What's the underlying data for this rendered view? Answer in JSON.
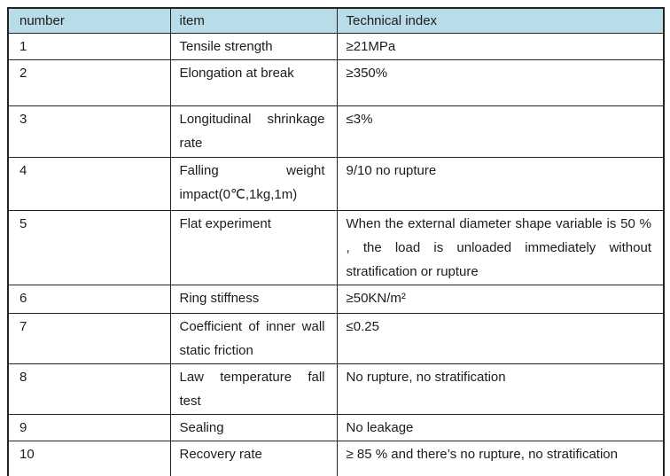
{
  "table": {
    "headers": [
      "number",
      "item",
      "Technical index"
    ],
    "rows": [
      {
        "number": "1",
        "item": "Tensile strength",
        "index": "≥21MPa"
      },
      {
        "number": "2",
        "item": "Elongation at break",
        "index": "≥350%"
      },
      {
        "number": "3",
        "item": "Longitudinal shrinkage rate",
        "index": "≤3%"
      },
      {
        "number": "4",
        "item": "Falling weight impact(0℃,1kg,1m)",
        "index": "9/10 no rupture"
      },
      {
        "number": "5",
        "item": "Flat experiment",
        "index": "When the external diameter shape variable is 50 % , the load is unloaded immediately without stratification or rupture"
      },
      {
        "number": "6",
        "item": "Ring stiffness",
        "index": "≥50KN/m²"
      },
      {
        "number": "7",
        "item": "Coefficient of inner wall static friction",
        "index": "≤0.25"
      },
      {
        "number": "8",
        "item": "Law temperature fall test",
        "index": "No rupture, no stratification"
      },
      {
        "number": "9",
        "item": "Sealing",
        "index": "No leakage"
      },
      {
        "number": "10",
        "item": "Recovery rate",
        "index": "≥ 85 %  and there’s no rupture, no stratification"
      }
    ],
    "colors": {
      "header_bg": "#b8dde8",
      "border": "#222222",
      "text": "#1c1c1c",
      "page_bg": "#ffffff"
    }
  }
}
